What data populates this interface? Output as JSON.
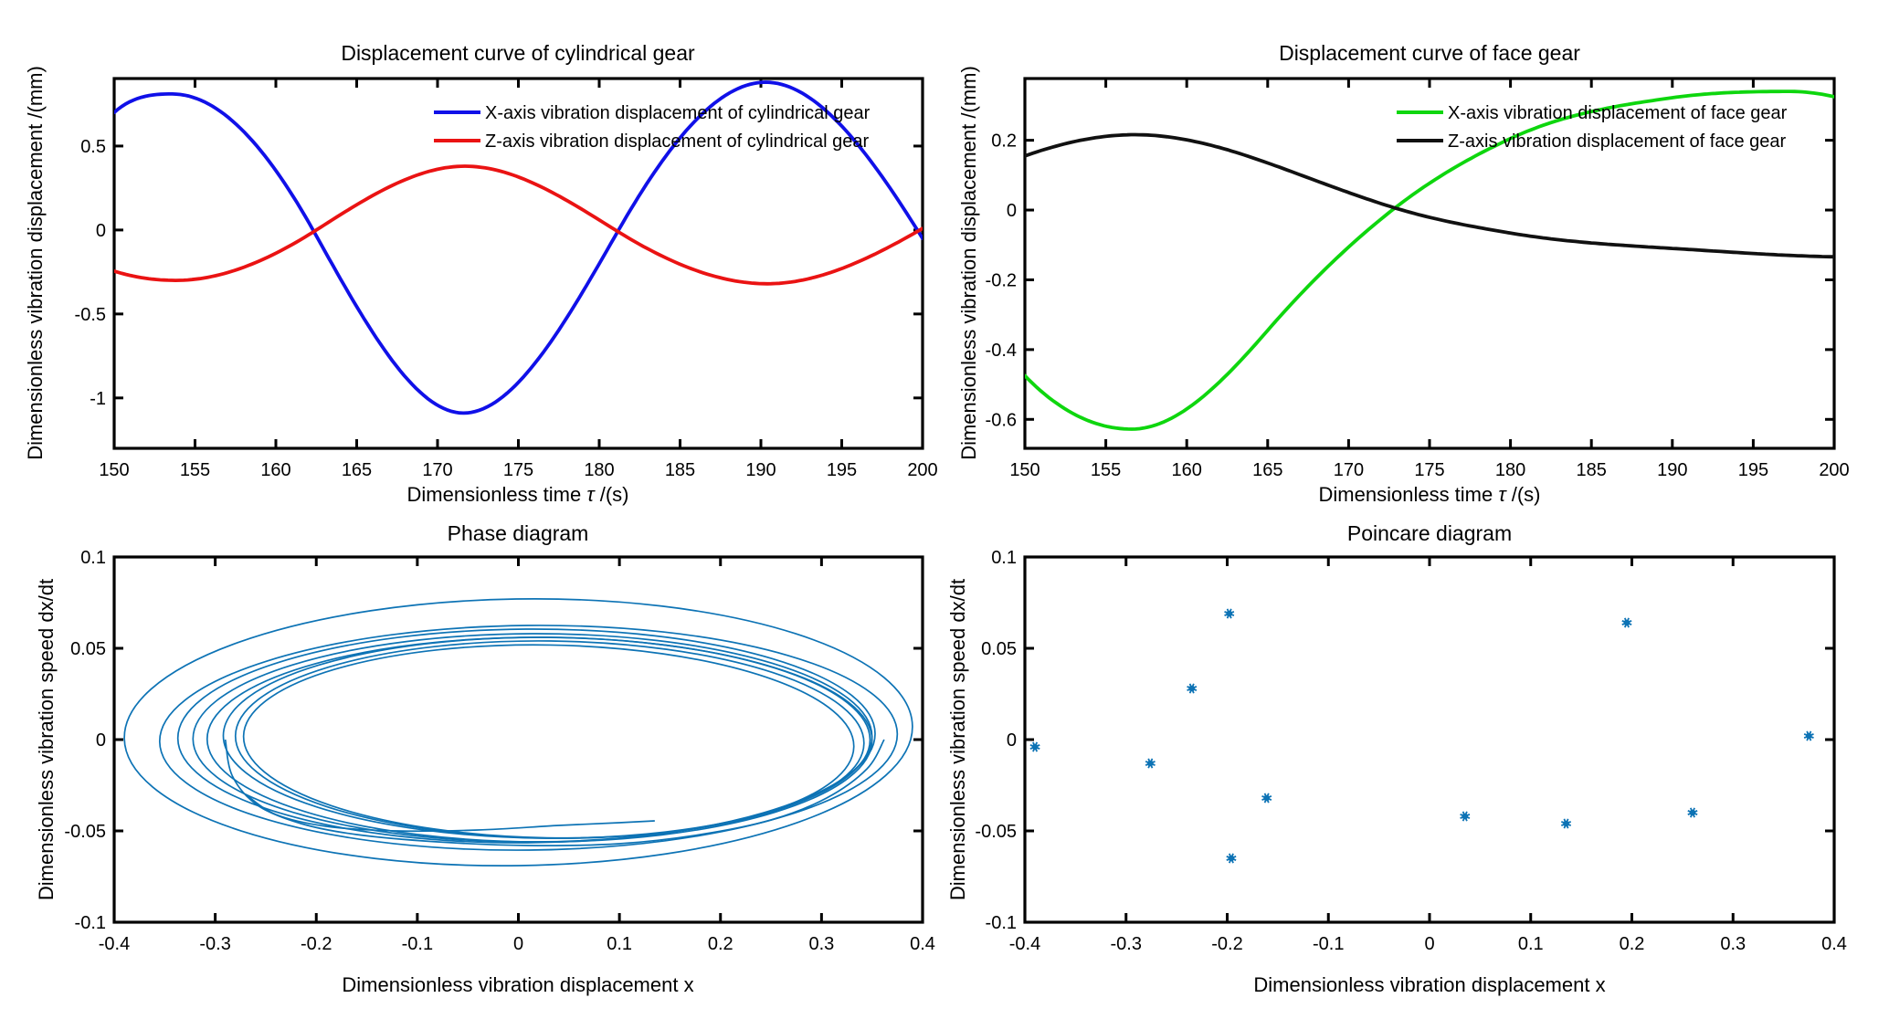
{
  "chart_data": [
    {
      "id": "cylindrical-gear-displacement",
      "type": "line",
      "title": "Displacement curve of cylindrical gear",
      "xlabel_parts": [
        "Dimensionless time ",
        "τ",
        " /(s)"
      ],
      "ylabel": "Dimensionless vibration displacement /(mm)",
      "xlim": [
        150,
        200
      ],
      "ylim": [
        -1.3,
        0.902
      ],
      "xticks": [
        150,
        155,
        160,
        165,
        170,
        175,
        180,
        185,
        190,
        195,
        200
      ],
      "xtick_labels": [
        "150",
        "155",
        "160",
        "165",
        "170",
        "175",
        "180",
        "185",
        "190",
        "195",
        "200"
      ],
      "yticks": [
        0.5,
        0,
        -0.5,
        -1
      ],
      "ytick_labels": [
        "0.5",
        "0",
        "-0.5",
        "-1"
      ],
      "legend": [
        {
          "label": "X-axis vibration displacement of cylindrical gear",
          "color": "#1010e8"
        },
        {
          "label": "Z-axis vibration displacement of cylindrical gear",
          "color": "#ea1313"
        }
      ],
      "series": [
        {
          "name": "X-axis vibration displacement of cylindrical gear",
          "color": "#1010e8",
          "knots": [
            [
              150,
              0.7,
              0.085
            ],
            [
              153.6,
              0.81,
              0
            ],
            [
              162.3,
              0,
              -0.172
            ],
            [
              171.6,
              -1.09,
              0
            ],
            [
              181.2,
              0,
              0.168
            ],
            [
              190.3,
              0.88,
              0
            ],
            [
              200,
              -0.05,
              -0.155
            ]
          ]
        },
        {
          "name": "Z-axis vibration displacement of cylindrical gear",
          "color": "#ea1313",
          "knots": [
            [
              150,
              -0.245,
              -0.03
            ],
            [
              153.8,
              -0.3,
              0
            ],
            [
              162.5,
              0,
              0.0615
            ],
            [
              171.7,
              0.38,
              0
            ],
            [
              181.0,
              0,
              -0.06
            ],
            [
              190.4,
              -0.32,
              0
            ],
            [
              200,
              0.009,
              0.0555
            ]
          ]
        }
      ]
    },
    {
      "id": "face-gear-displacement",
      "type": "line",
      "title": "Displacement curve of face gear",
      "xlabel_parts": [
        "Dimensionless time ",
        "τ",
        " /(s)"
      ],
      "ylabel": "Dimensionless vibration displacement /(mm)",
      "xlim": [
        150,
        200
      ],
      "ylim": [
        -0.683,
        0.377
      ],
      "xticks": [
        150,
        155,
        160,
        165,
        170,
        175,
        180,
        185,
        190,
        195,
        200
      ],
      "xtick_labels": [
        "150",
        "155",
        "160",
        "165",
        "170",
        "175",
        "180",
        "185",
        "190",
        "195",
        "200"
      ],
      "yticks": [
        0.2,
        0,
        -0.2,
        -0.4,
        -0.6
      ],
      "ytick_labels": [
        "0.2",
        "0",
        "-0.2",
        "-0.4",
        "-0.6"
      ],
      "legend": [
        {
          "label": "X-axis vibration displacement of face gear",
          "color": "#0ed60e"
        },
        {
          "label": "Z-axis vibration displacement of face gear",
          "color": "#111111"
        }
      ],
      "series": [
        {
          "name": "X-axis vibration displacement of face gear",
          "color": "#0ed60e",
          "knots": [
            [
              150,
              -0.475,
              -0.048
            ],
            [
              156.6,
              -0.628,
              0
            ],
            [
              165,
              -0.345,
              0.0535
            ],
            [
              172.7,
              0,
              0.0365
            ],
            [
              180,
              0.205,
              0.0215
            ],
            [
              190,
              0.322,
              0.0065
            ],
            [
              197.3,
              0.34,
              0
            ],
            [
              200,
              0.325,
              -0.01
            ]
          ]
        },
        {
          "name": "Z-axis vibration displacement of face gear",
          "color": "#111111",
          "knots": [
            [
              150,
              0.155,
              0.0165
            ],
            [
              156.8,
              0.216,
              0
            ],
            [
              165,
              0.135,
              -0.0165
            ],
            [
              173.3,
              0,
              -0.0135
            ],
            [
              180,
              -0.066,
              -0.0078
            ],
            [
              190,
              -0.11,
              -0.0028
            ],
            [
              200,
              -0.134,
              -0.0008
            ]
          ]
        }
      ]
    },
    {
      "id": "phase-diagram",
      "type": "line",
      "title": "Phase diagram",
      "xlabel_parts": [
        "Dimensionless vibration displacement x"
      ],
      "ylabel": "Dimensionless vibration speed dx/dt",
      "xlim": [
        -0.4,
        0.4
      ],
      "ylim": [
        -0.1,
        0.1
      ],
      "xticks": [
        -0.4,
        -0.3,
        -0.2,
        -0.1,
        0,
        0.1,
        0.2,
        0.3,
        0.4
      ],
      "xtick_labels": [
        "-0.4",
        "-0.3",
        "-0.2",
        "-0.1",
        "0",
        "0.1",
        "0.2",
        "0.3",
        "0.4"
      ],
      "yticks": [
        0.1,
        0.05,
        0,
        -0.05,
        -0.1
      ],
      "ytick_labels": [
        "0.1",
        "0.05",
        "0",
        "-0.05",
        "-0.1"
      ],
      "trajectory_color": "#0d73b5",
      "orbit_rings": [
        {
          "cx": 0.0,
          "cy": 0.004,
          "rx": 0.39,
          "ry": 0.073,
          "rot": -0.9
        },
        {
          "cx": 0.01,
          "cy": 0.001,
          "rx": 0.365,
          "ry": 0.0615,
          "rot": -0.6
        },
        {
          "cx": 0.008,
          "cy": 0.002,
          "rx": 0.345,
          "ry": 0.0585,
          "rot": -0.4
        },
        {
          "cx": 0.014,
          "cy": 0.001,
          "rx": 0.336,
          "ry": 0.057,
          "rot": -0.2
        },
        {
          "cx": 0.021,
          "cy": 0.0,
          "rx": 0.329,
          "ry": 0.056,
          "rot": 0.1
        },
        {
          "cx": 0.028,
          "cy": 0.001,
          "rx": 0.32,
          "ry": 0.055,
          "rot": 0.4
        },
        {
          "cx": 0.031,
          "cy": 0.0,
          "rx": 0.311,
          "ry": 0.054,
          "rot": 0.7
        },
        {
          "cx": 0.03,
          "cy": -0.001,
          "rx": 0.302,
          "ry": 0.0528,
          "rot": 1.0
        }
      ],
      "strands": [
        {
          "points": [
            [
              -0.29,
              0.0
            ],
            [
              -0.283,
              -0.02
            ],
            [
              -0.258,
              -0.036
            ],
            [
              -0.215,
              -0.046
            ],
            [
              -0.16,
              -0.052
            ],
            [
              -0.08,
              -0.056
            ],
            [
              0.01,
              -0.058
            ],
            [
              0.1,
              -0.057
            ],
            [
              0.18,
              -0.052
            ],
            [
              0.25,
              -0.044
            ],
            [
              0.305,
              -0.032
            ],
            [
              0.345,
              -0.016
            ],
            [
              0.362,
              0.0
            ]
          ]
        },
        {
          "points": [
            [
              -0.27,
              -0.03
            ],
            [
              -0.24,
              -0.041
            ],
            [
              -0.19,
              -0.0475
            ],
            [
              -0.12,
              -0.05
            ],
            [
              -0.04,
              -0.0495
            ],
            [
              0.04,
              -0.047
            ],
            [
              0.1,
              -0.0455
            ],
            [
              0.135,
              -0.0445
            ]
          ]
        }
      ]
    },
    {
      "id": "poincare-diagram",
      "type": "scatter",
      "title": "Poincare diagram",
      "xlabel_parts": [
        "Dimensionless vibration displacement x"
      ],
      "ylabel": "Dimensionless vibration speed dx/dt",
      "xlim": [
        -0.4,
        0.4
      ],
      "ylim": [
        -0.1,
        0.1
      ],
      "xticks": [
        -0.4,
        -0.3,
        -0.2,
        -0.1,
        0,
        0.1,
        0.2,
        0.3,
        0.4
      ],
      "xtick_labels": [
        "-0.4",
        "-0.3",
        "-0.2",
        "-0.1",
        "0",
        "0.1",
        "0.2",
        "0.3",
        "0.4"
      ],
      "yticks": [
        0.1,
        0.05,
        0,
        -0.05,
        -0.1
      ],
      "ytick_labels": [
        "0.1",
        "0.05",
        "0",
        "-0.05",
        "-0.1"
      ],
      "marker_color": "#0d73b5",
      "points": [
        [
          -0.39,
          -0.004
        ],
        [
          -0.276,
          -0.013
        ],
        [
          -0.235,
          0.028
        ],
        [
          -0.198,
          0.069
        ],
        [
          -0.196,
          -0.065
        ],
        [
          -0.161,
          -0.032
        ],
        [
          0.035,
          -0.042
        ],
        [
          0.135,
          -0.046
        ],
        [
          0.195,
          0.064
        ],
        [
          0.26,
          -0.04
        ],
        [
          0.375,
          0.002
        ]
      ]
    }
  ]
}
